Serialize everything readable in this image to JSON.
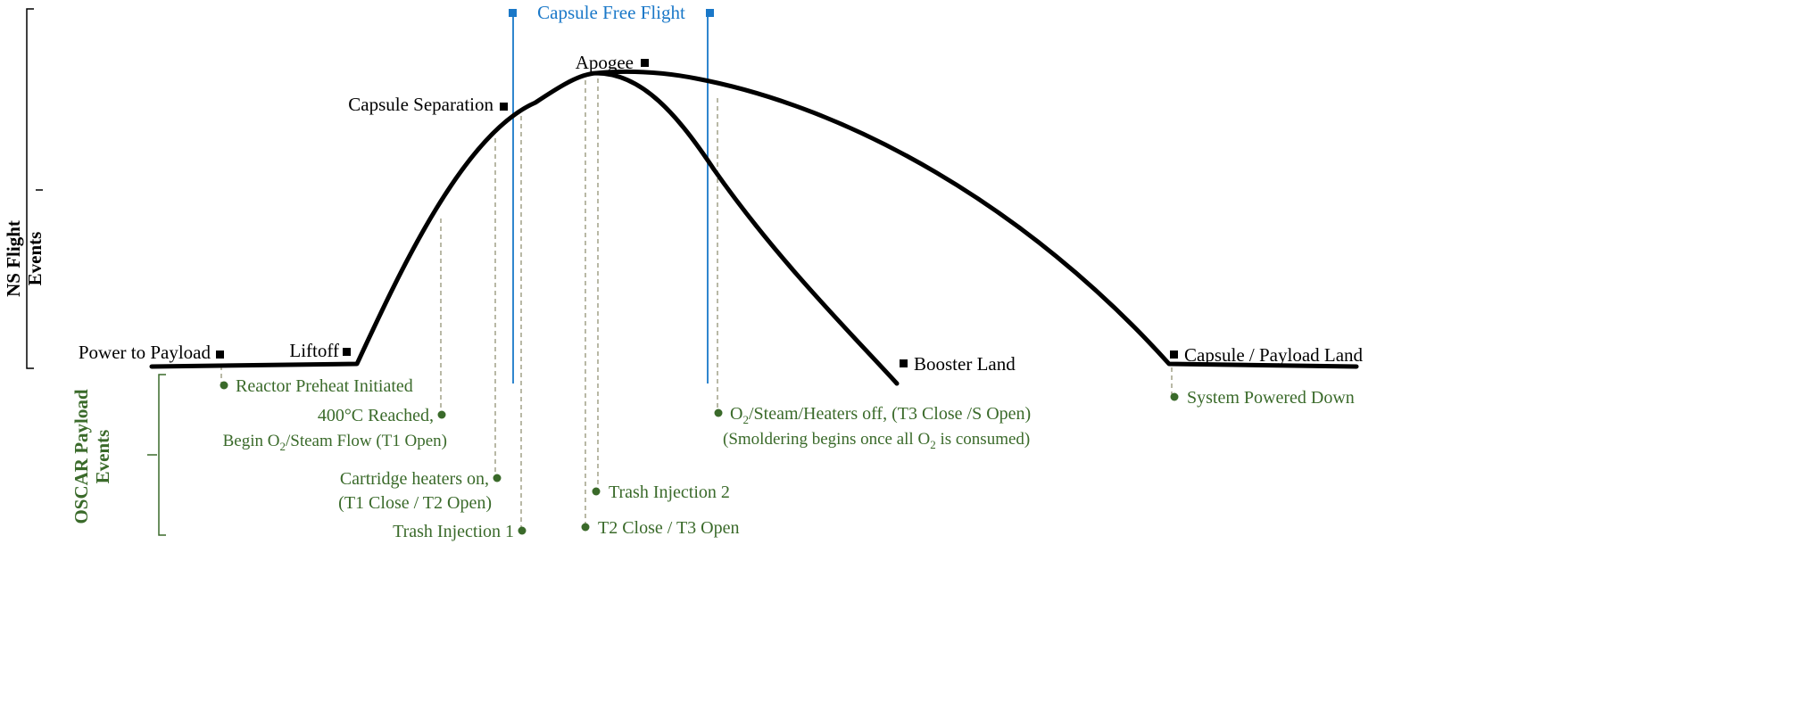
{
  "axes": {
    "ns_label_line1": "NS Flight",
    "ns_label_line2": "Events",
    "oscar_label_line1": "OSCAR Payload",
    "oscar_label_line2": "Events"
  },
  "free_flight": {
    "label": "Capsule Free Flight",
    "color": "#1a78c8"
  },
  "flight_events": {
    "power": "Power to Payload",
    "liftoff": "Liftoff",
    "separation": "Capsule Separation",
    "apogee": "Apogee",
    "booster_land": "Booster Land",
    "capsule_land": "Capsule / Payload Land"
  },
  "payload_events": {
    "preheat": "Reactor Preheat Initiated",
    "reached": "400°C Reached,",
    "flow_a": "Begin O",
    "flow_sub": "2",
    "flow_b": "/Steam Flow (T1 Open)",
    "heaters_1": "Cartridge heaters on,",
    "heaters_2": "(T1 Close / T2 Open)",
    "trash1": "Trash Injection 1",
    "trash2": "Trash Injection 2",
    "t2close": "T2 Close / T3 Open",
    "off_a": "O",
    "off_sub": "2",
    "off_b": "/Steam/Heaters off, (T3 Close /S Open)",
    "smolder_a": "(Smoldering begins once all O",
    "smolder_sub": "2",
    "smolder_b": " is consumed)",
    "powered_down": "System Powered Down"
  },
  "colors": {
    "payload": "#3a6a2a",
    "trajectory": "#000000"
  }
}
